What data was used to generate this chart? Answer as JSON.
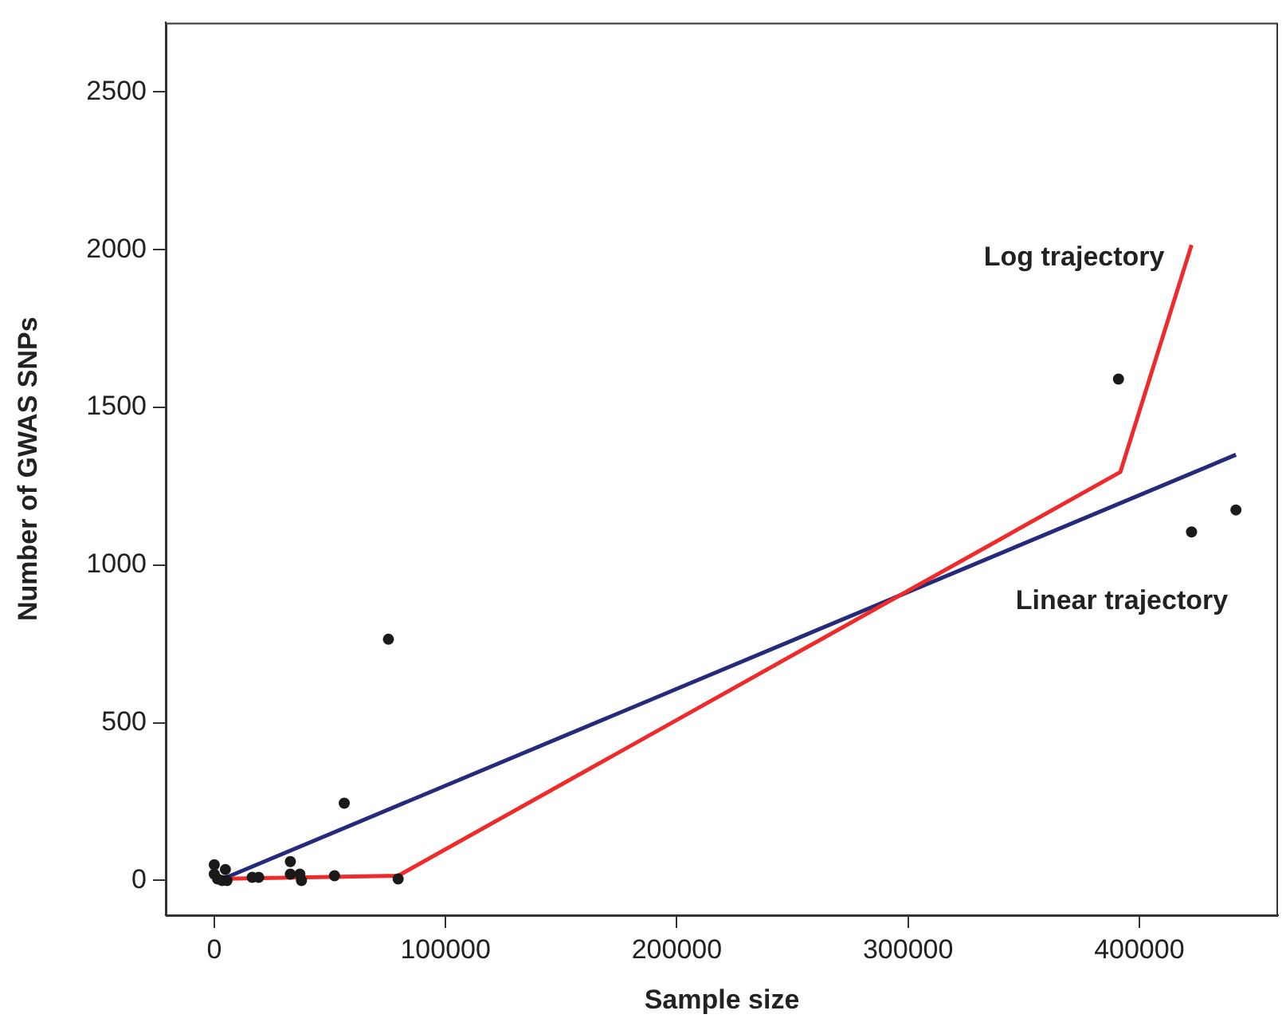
{
  "chart_data": {
    "type": "scatter",
    "xlabel": "Sample size",
    "ylabel": "Number of GWAS SNPs",
    "xlim": [
      -21000,
      460000
    ],
    "ylim": [
      -110,
      2720
    ],
    "xticks": [
      0,
      100000,
      200000,
      300000,
      400000
    ],
    "yticks": [
      0,
      500,
      1000,
      1500,
      2000,
      2500
    ],
    "grid": false,
    "legend": false,
    "series": [
      {
        "color": "#1a1a1a",
        "marker": "circle",
        "x": [
          0,
          0,
          1400,
          4800,
          5500,
          3400,
          16400,
          19200,
          32900,
          32900,
          37700,
          37000,
          52000,
          79500,
          75300,
          56200,
          391000,
          422600,
          441800
        ],
        "values": [
          50,
          20,
          5,
          35,
          0,
          0,
          10,
          10,
          60,
          20,
          0,
          20,
          15,
          5,
          765,
          245,
          1590,
          1105,
          1175
        ]
      },
      {
        "type": "line",
        "name": "Log trajectory",
        "color": "#ee2a2a",
        "marker": "none",
        "x": [
          0,
          79500,
          391800,
          422600
        ],
        "values": [
          5,
          15,
          1295,
          2015
        ]
      },
      {
        "type": "line",
        "name": "Linear trajectory",
        "color": "#252a7a",
        "marker": "none",
        "x": [
          2000,
          441800
        ],
        "values": [
          0,
          1350
        ]
      }
    ]
  }
}
